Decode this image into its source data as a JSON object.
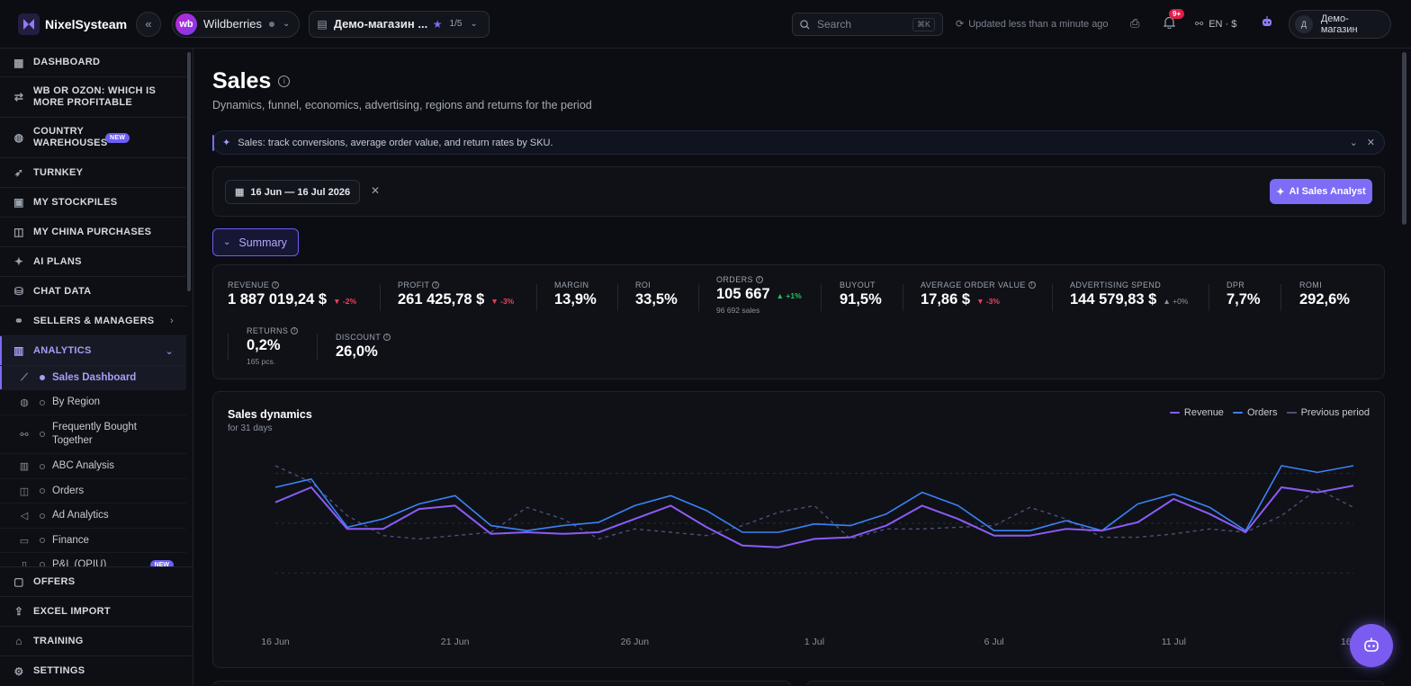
{
  "app": {
    "name": "NixelSysteam"
  },
  "topbar": {
    "marketplace": {
      "badge": "wb",
      "name": "Wildberries"
    },
    "store": {
      "name": "Демо-магазин ...",
      "count": "1/5"
    },
    "search": {
      "placeholder": "Search",
      "shortcut": "⌘K"
    },
    "updated": "Updated less than a minute ago",
    "notifications_badge": "9+",
    "lang": "EN · $",
    "user": {
      "initial": "Д",
      "name": "Демо-магазин"
    }
  },
  "sidebar": {
    "items": [
      {
        "label": "Dashboard",
        "icon": "grid-icon"
      },
      {
        "label": "WB or OZON: which is more profitable",
        "icon": "compare-icon"
      },
      {
        "label": "Country warehouses",
        "icon": "globe-icon",
        "badge": "NEW"
      },
      {
        "label": "Turnkey",
        "icon": "rocket-icon"
      },
      {
        "label": "My stockpiles",
        "icon": "box-icon"
      },
      {
        "label": "My China purchases",
        "icon": "bag-icon"
      },
      {
        "label": "AI plans",
        "icon": "sparkle-icon"
      },
      {
        "label": "Chat data",
        "icon": "database-icon"
      },
      {
        "label": "Sellers & managers",
        "icon": "handshake-icon"
      },
      {
        "label": "Analytics",
        "icon": "bar-chart-icon"
      }
    ],
    "analytics_sub": [
      {
        "label": "Sales Dashboard",
        "icon": "line-chart-icon"
      },
      {
        "label": "By Region",
        "icon": "globe-icon"
      },
      {
        "label": "Frequently Bought Together",
        "icon": "link-icon"
      },
      {
        "label": "ABC Analysis",
        "icon": "bar-chart-icon"
      },
      {
        "label": "Orders",
        "icon": "bag-icon"
      },
      {
        "label": "Ad Analytics",
        "icon": "megaphone-icon"
      },
      {
        "label": "Finance",
        "icon": "wallet-icon"
      },
      {
        "label": "P&L (OPIU)",
        "icon": "doc-icon",
        "badge": "NEW"
      }
    ],
    "bottom": [
      {
        "label": "Offers",
        "icon": "chat-icon"
      },
      {
        "label": "Excel import",
        "icon": "upload-icon"
      },
      {
        "label": "Training",
        "icon": "graduation-icon"
      },
      {
        "label": "Settings",
        "icon": "gear-icon"
      }
    ]
  },
  "page": {
    "title": "Sales",
    "subtitle": "Dynamics, funnel, economics, advertising, regions and returns for the period",
    "tip": "Sales: track conversions, average order value, and return rates by SKU.",
    "date_range": "16 Jun — 16 Jul 2026",
    "ai_button": "AI Sales Analyst",
    "summary_button": "Summary"
  },
  "metrics": [
    {
      "label": "Revenue",
      "value": "1 887 019,24 $",
      "delta": "▼ -2%",
      "trend": "neg",
      "info": true
    },
    {
      "label": "Profit",
      "value": "261 425,78 $",
      "delta": "▼ -3%",
      "trend": "neg",
      "info": true
    },
    {
      "label": "Margin",
      "value": "13,9%"
    },
    {
      "label": "ROI",
      "value": "33,5%"
    },
    {
      "label": "Orders",
      "value": "105 667",
      "delta": "▲ +1%",
      "trend": "pos",
      "sub": "96 692 sales",
      "info": true
    },
    {
      "label": "Buyout",
      "value": "91,5%"
    },
    {
      "label": "Average order value",
      "value": "17,86 $",
      "delta": "▼ -3%",
      "trend": "neg",
      "info": true
    },
    {
      "label": "Advertising spend",
      "value": "144 579,83 $",
      "delta": "▲ +0%",
      "trend": "flat"
    },
    {
      "label": "DPR",
      "value": "7,7%"
    },
    {
      "label": "ROMI",
      "value": "292,6%"
    },
    {
      "label": "Returns",
      "value": "0,2%",
      "sub": "165 pcs.",
      "info": true
    },
    {
      "label": "Discount",
      "value": "26,0%",
      "info": true
    }
  ],
  "chart": {
    "title": "Sales dynamics",
    "subtitle": "for 31 days",
    "legend": {
      "revenue": "Revenue",
      "orders": "Orders",
      "previous": "Previous period"
    },
    "colors": {
      "revenue": "#8b5cf6",
      "orders": "#3b82f6",
      "previous": "#4b4f78"
    }
  },
  "chart_data": {
    "type": "line",
    "title": "Sales dynamics",
    "subtitle": "for 31 days",
    "x": [
      "16 Jun",
      "17 Jun",
      "18 Jun",
      "19 Jun",
      "20 Jun",
      "21 Jun",
      "22 Jun",
      "23 Jun",
      "24 Jun",
      "25 Jun",
      "26 Jun",
      "27 Jun",
      "28 Jun",
      "29 Jun",
      "30 Jun",
      "1 Jul",
      "2 Jul",
      "3 Jul",
      "4 Jul",
      "5 Jul",
      "6 Jul",
      "7 Jul",
      "8 Jul",
      "9 Jul",
      "10 Jul",
      "11 Jul",
      "12 Jul",
      "13 Jul",
      "14 Jul",
      "15 Jul",
      "16 Jul"
    ],
    "tick_labels": [
      "16 Jun",
      "21 Jun",
      "26 Jun",
      "1 Jul",
      "6 Jul",
      "11 Jul",
      "16 Jul"
    ],
    "series": [
      {
        "name": "Revenue",
        "values": [
          58,
          67,
          42,
          42,
          54,
          56,
          39,
          40,
          39,
          40,
          48,
          56,
          43,
          32,
          31,
          36,
          37,
          44,
          56,
          48,
          38,
          38,
          42,
          41,
          46,
          60,
          51,
          40,
          67,
          64,
          68
        ]
      },
      {
        "name": "Orders",
        "values": [
          67,
          72,
          43,
          48,
          57,
          62,
          44,
          41,
          44,
          46,
          56,
          62,
          53,
          40,
          40,
          45,
          44,
          51,
          64,
          56,
          41,
          41,
          47,
          41,
          57,
          63,
          55,
          41,
          80,
          76,
          80
        ]
      },
      {
        "name": "Previous period",
        "values": [
          80,
          70,
          50,
          38,
          36,
          38,
          40,
          55,
          48,
          36,
          42,
          40,
          38,
          44,
          52,
          56,
          36,
          42,
          42,
          43,
          44,
          55,
          48,
          37,
          37,
          39,
          42,
          40,
          50,
          66,
          55
        ]
      }
    ],
    "ylim": [
      0,
      100
    ],
    "grid": true,
    "legend_position": "top-right"
  }
}
